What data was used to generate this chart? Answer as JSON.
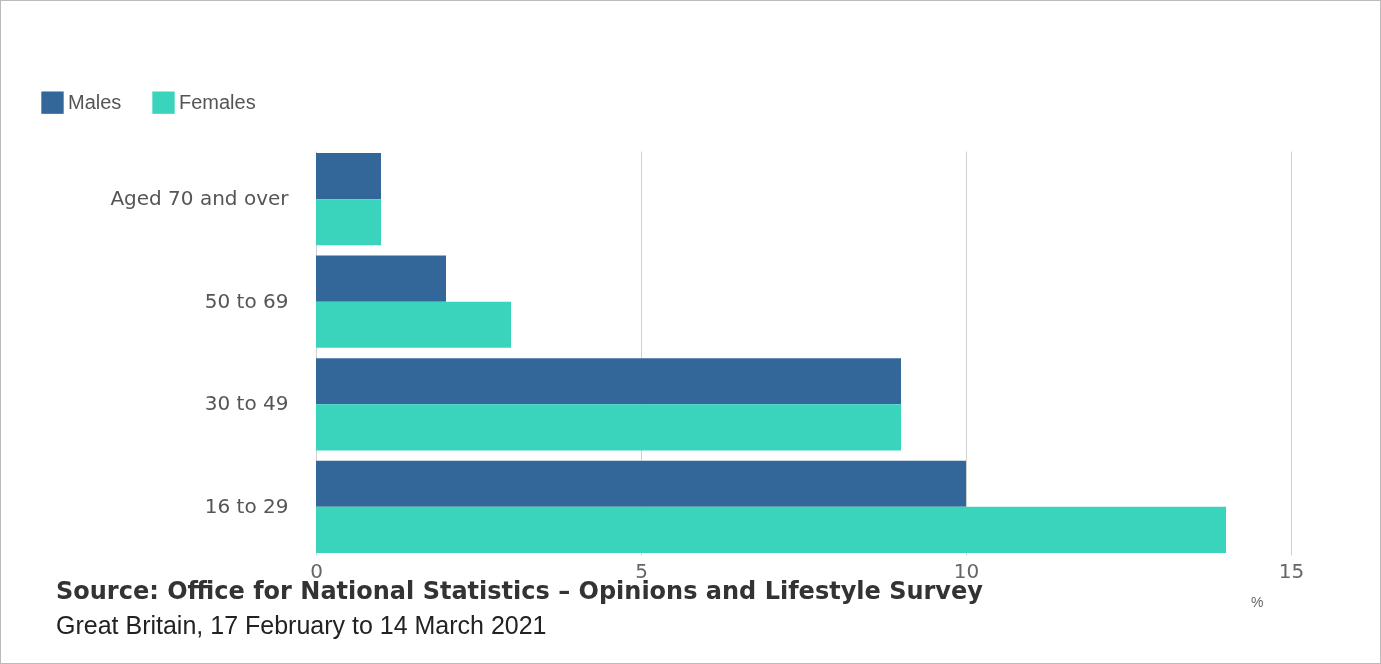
{
  "chart_data": {
    "type": "bar",
    "orientation": "horizontal",
    "categories": [
      "Aged 70 and over",
      "50 to 69",
      "30 to 49",
      "16 to 29"
    ],
    "series": [
      {
        "name": "Males",
        "color": "#336699",
        "values": [
          1,
          2,
          9,
          10
        ]
      },
      {
        "name": "Females",
        "color": "#3ad4bc",
        "values": [
          1,
          3,
          9,
          14
        ]
      }
    ],
    "xlim": [
      0,
      15
    ],
    "xticks": [
      0,
      5,
      10,
      15
    ],
    "xlabel": "%",
    "grid": "x",
    "legend": "top left",
    "annotations": [
      "Source: Office for National Statistics – Opinions and Lifestyle Survey",
      "Great Britain, 17 February to 14 March 2021"
    ]
  }
}
